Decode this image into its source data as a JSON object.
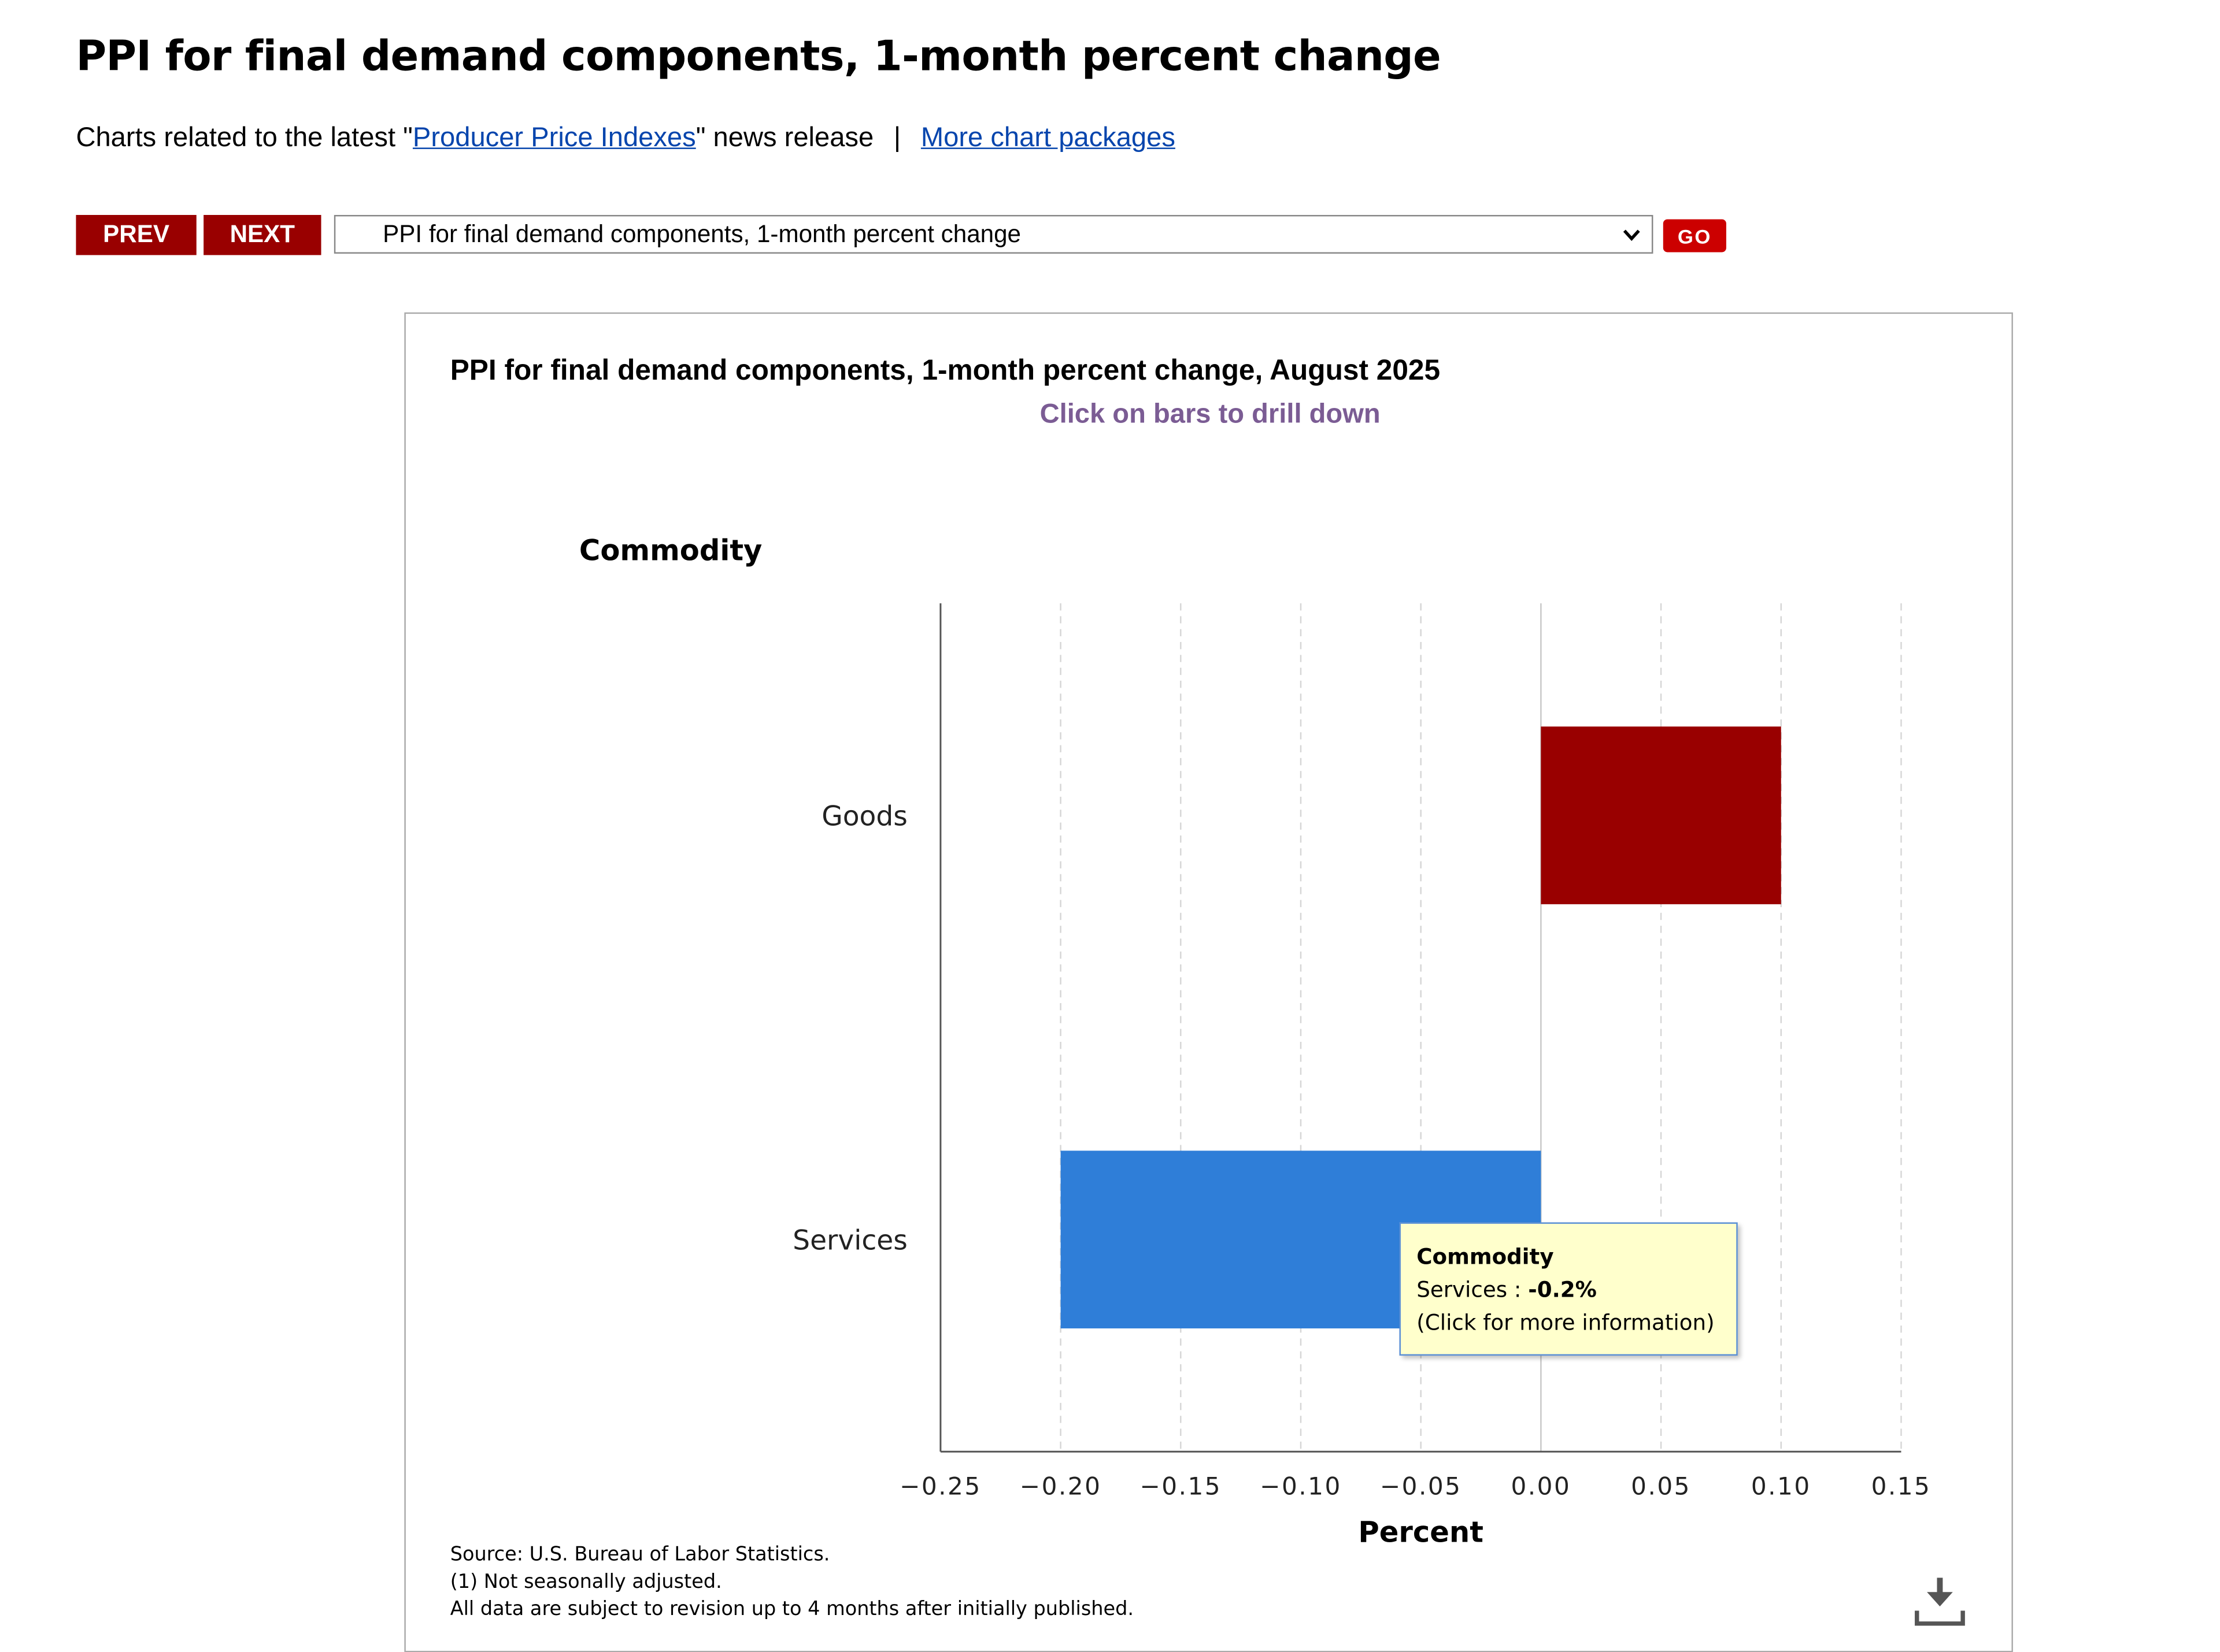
{
  "page": {
    "title": "PPI for final demand components, 1-month percent change",
    "related_prefix": "Charts related to the latest \"",
    "related_link": "Producer Price Indexes",
    "related_suffix": "\" news release",
    "separator": "|",
    "more_link": "More chart packages"
  },
  "nav": {
    "prev_label": "PREV",
    "next_label": "NEXT",
    "selected_chart": "PPI for final demand components, 1-month percent change",
    "go_label": "GO"
  },
  "chart_data": {
    "type": "bar",
    "orientation": "horizontal",
    "title": "PPI for final demand components, 1-month percent change, August 2025",
    "subtitle": "Click on bars to drill down",
    "ylabel": "Commodity",
    "xlabel": "Percent",
    "categories": [
      "Goods",
      "Services"
    ],
    "values": [
      0.1,
      -0.2
    ],
    "colors": [
      "#990000",
      "#2f7ed8"
    ],
    "xlim": [
      -0.25,
      0.15
    ],
    "xticks": [
      -0.25,
      -0.2,
      -0.15,
      -0.1,
      -0.05,
      0.0,
      0.05,
      0.1,
      0.15
    ],
    "xtick_labels": [
      "−0.25",
      "−0.20",
      "−0.15",
      "−0.10",
      "−0.05",
      "0.00",
      "0.05",
      "0.10",
      "0.15"
    ],
    "grid": "vertical dashed"
  },
  "tooltip": {
    "title": "Commodity",
    "series_label": "Services : ",
    "value": "-0.2%",
    "hint": "(Click for more information)"
  },
  "footnotes": {
    "source": "Source: U.S. Bureau of Labor Statistics.",
    "note1": "(1) Not seasonally adjusted.",
    "note2": "All data are subject to revision up to 4 months after initially published."
  },
  "icons": {
    "download": "download-icon",
    "dropdown": "chevron-down-icon"
  }
}
